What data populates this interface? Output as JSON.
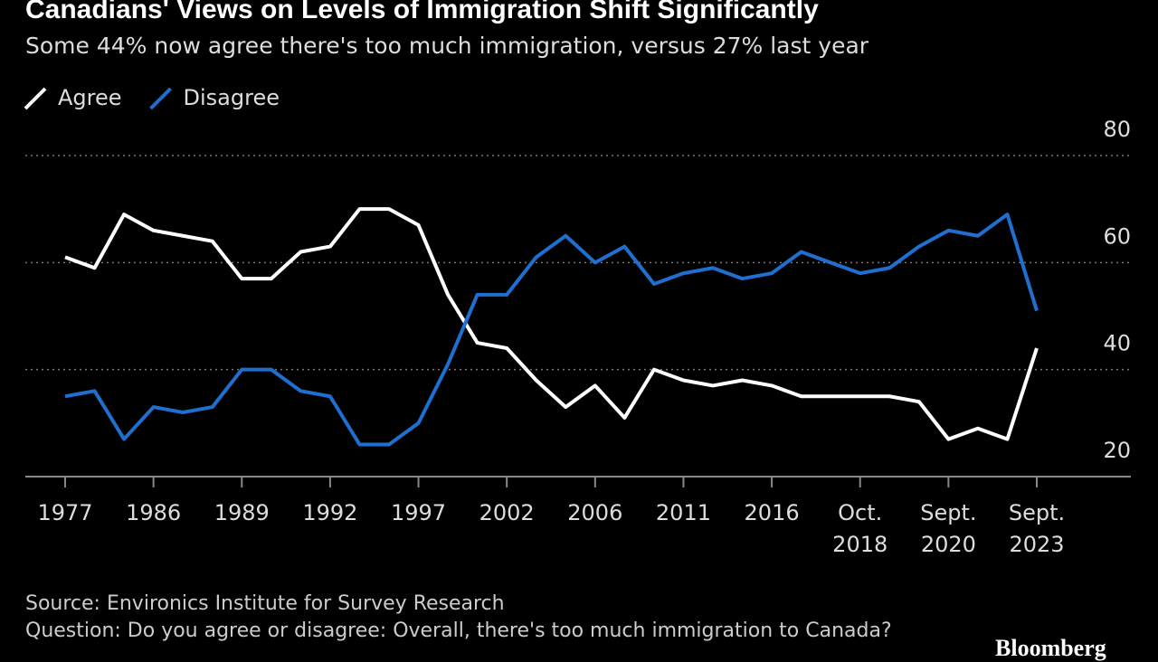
{
  "chart_data": {
    "type": "line",
    "title": "Canadians' Views on Levels of Immigration Shift Significantly",
    "subtitle": "Some 44% now agree there's too much immigration, versus 27% last year",
    "categories": [
      "1977",
      null,
      null,
      "1986",
      null,
      null,
      "1989",
      null,
      null,
      "1992",
      null,
      null,
      "1997",
      null,
      null,
      "2002",
      null,
      null,
      "2006",
      null,
      null,
      "2011",
      null,
      null,
      "2016",
      null,
      null,
      "Oct. 2018",
      null,
      null,
      "Sept. 2020",
      null,
      null,
      "Sept. 2023"
    ],
    "series": [
      {
        "name": "Agree",
        "color": "#ffffff",
        "values": [
          61,
          59,
          69,
          66,
          65,
          64,
          57,
          57,
          62,
          63,
          70,
          70,
          67,
          54,
          45,
          44,
          38,
          33,
          37,
          31,
          40,
          38,
          37,
          38,
          37,
          35,
          35,
          35,
          35,
          34,
          27,
          29,
          27,
          44
        ]
      },
      {
        "name": "Disagree",
        "color": "#1f6fd1",
        "values": [
          35,
          36,
          27,
          33,
          32,
          33,
          40,
          40,
          36,
          35,
          26,
          26,
          30,
          41,
          54,
          54,
          61,
          65,
          60,
          63,
          56,
          58,
          59,
          57,
          58,
          62,
          60,
          58,
          59,
          63,
          66,
          65,
          69,
          51
        ]
      }
    ],
    "ylim": [
      20,
      80
    ],
    "yticks": [
      20,
      40,
      60,
      80
    ],
    "grid": true,
    "source": "Source: Environics Institute for Survey Research",
    "note": "Question: Do you agree or disagree: Overall, there's too much immigration to Canada?",
    "brand": "Bloomberg"
  }
}
